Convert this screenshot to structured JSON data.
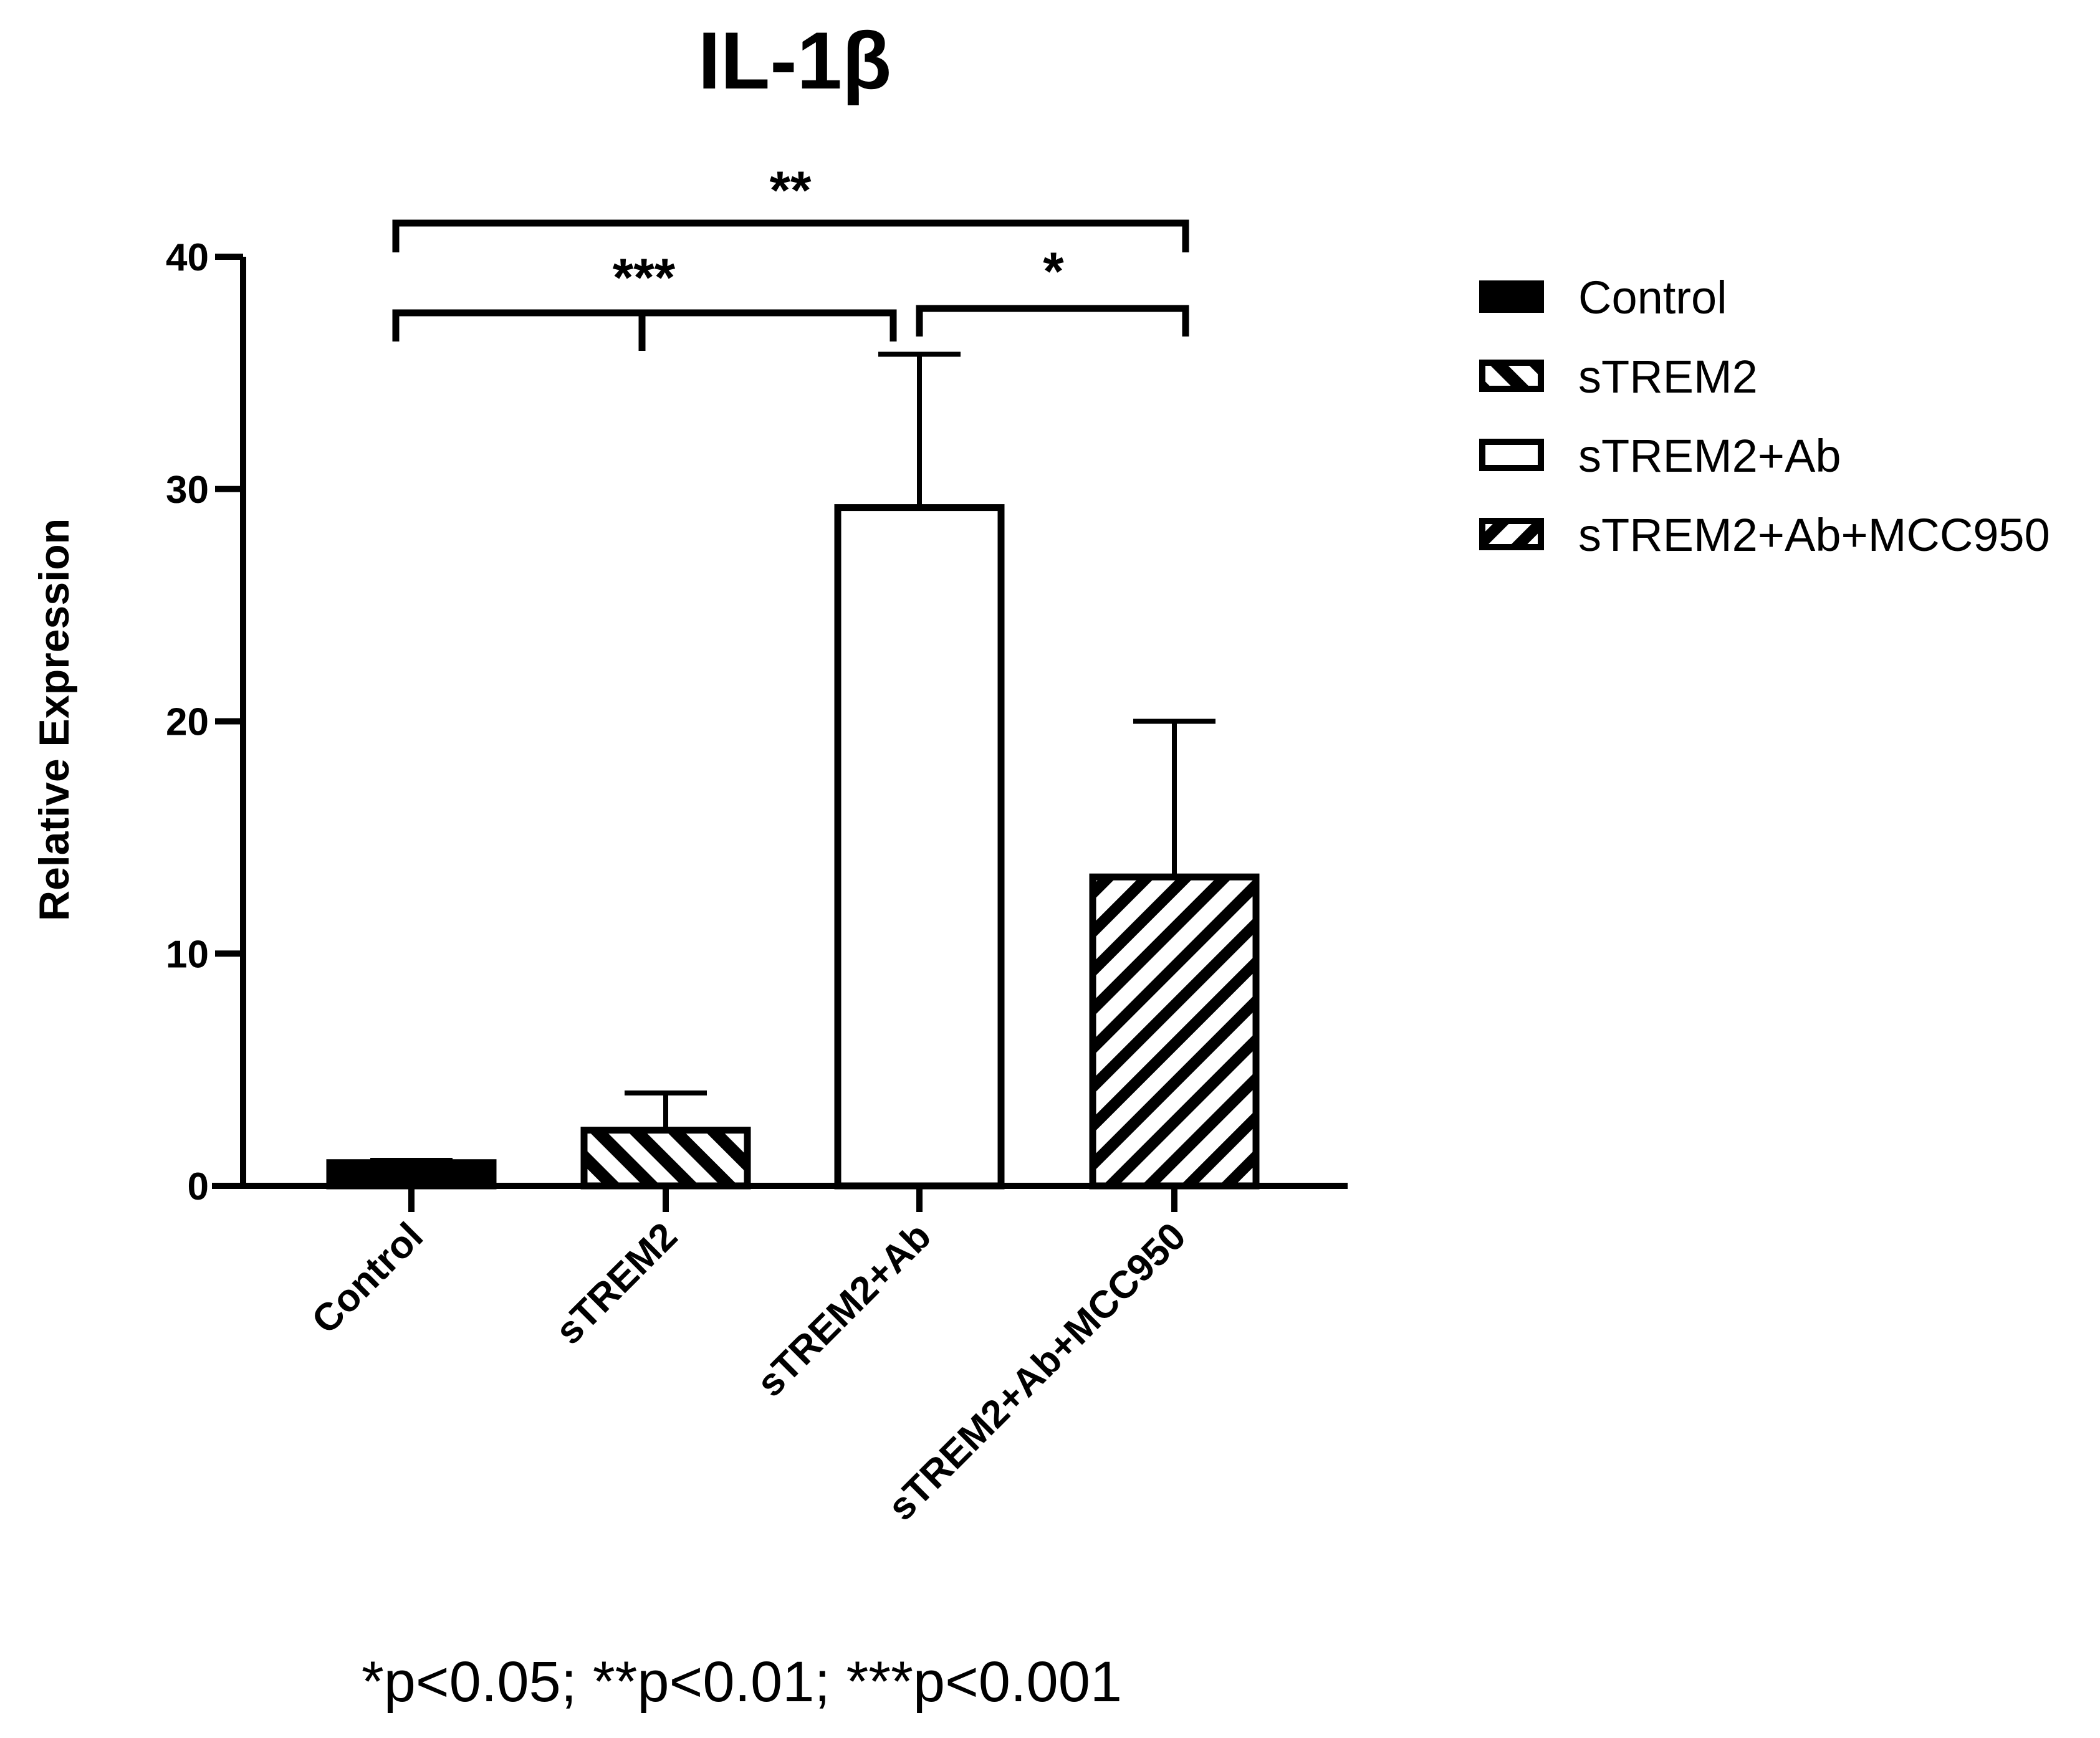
{
  "chart_data": {
    "type": "bar",
    "title": "IL-1β",
    "xlabel": "",
    "ylabel": "Relative Expression",
    "ylim": [
      0,
      40
    ],
    "yticks": [
      0,
      10,
      20,
      30,
      40
    ],
    "categories": [
      "Control",
      "sTREM2",
      "sTREM2+Ab",
      "sTREM2+Ab+MCC950"
    ],
    "values": [
      1.0,
      2.4,
      29.2,
      13.3
    ],
    "errors": [
      0.1,
      1.6,
      6.6,
      6.7
    ],
    "fills": [
      "solid-black",
      "hatch-backslash",
      "white",
      "hatch-slash"
    ],
    "legend": {
      "position": "right",
      "entries": [
        "Control",
        "sTREM2",
        "sTREM2+Ab",
        "sTREM2+Ab+MCC950"
      ]
    },
    "significance": [
      {
        "from": "Control",
        "to": "sTREM2+Ab+MCC950",
        "label": "**"
      },
      {
        "from": "Control",
        "to": "sTREM2+Ab",
        "label": "***"
      },
      {
        "from": "sTREM2+Ab",
        "to": "sTREM2+Ab+MCC950",
        "label": "*"
      }
    ],
    "grid": false
  },
  "footnote": "*p<0.05; **p<0.01; ***p<0.001"
}
